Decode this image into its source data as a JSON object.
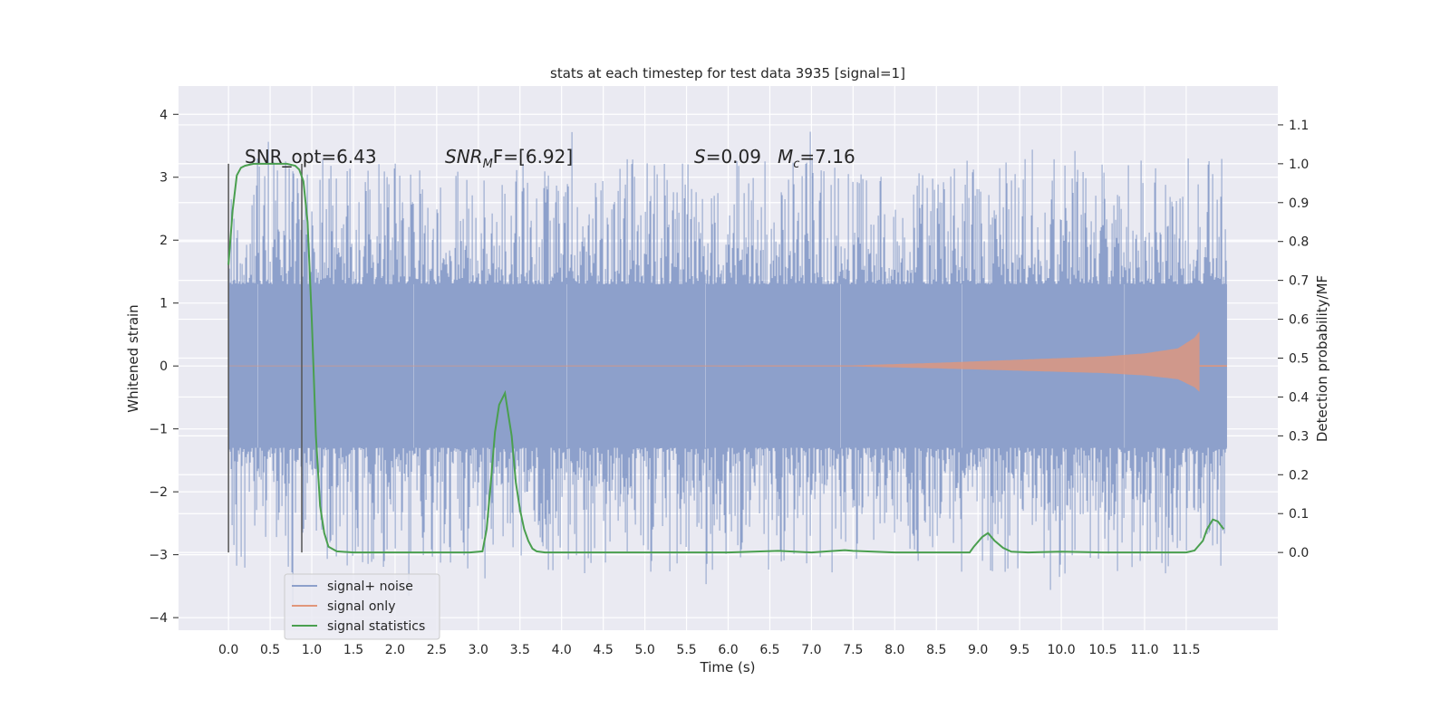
{
  "chart_data": {
    "type": "line",
    "title": "stats at each timestep for test data 3935 [signal=1]",
    "xlabel": "Time (s)",
    "ylabel_left": "Whitened strain",
    "ylabel_right": "Detection probability/MF",
    "xlim": [
      -0.6,
      12.6
    ],
    "ylim_left": [
      -4.2,
      4.45
    ],
    "ylim_right": [
      -0.2,
      1.2
    ],
    "x_ticks": [
      "0.0",
      "0.5",
      "1.0",
      "1.5",
      "2.0",
      "2.5",
      "3.0",
      "3.5",
      "4.0",
      "4.5",
      "5.0",
      "5.5",
      "6.0",
      "6.5",
      "7.0",
      "7.5",
      "8.0",
      "8.5",
      "9.0",
      "9.5",
      "10.0",
      "10.5",
      "11.0",
      "11.5"
    ],
    "y_left_ticks": [
      "-4",
      "-3",
      "-2",
      "-1",
      "0",
      "1",
      "2",
      "3",
      "4"
    ],
    "y_right_ticks": [
      "0.0",
      "0.1",
      "0.2",
      "0.3",
      "0.4",
      "0.5",
      "0.6",
      "0.7",
      "0.8",
      "0.9",
      "1.0",
      "1.1"
    ],
    "grid": true,
    "legend_position": "bottom-left",
    "annotations": {
      "snr_opt": "SNR_opt=6.43",
      "snr_mf_main": "SNR",
      "snr_mf_sub": "M",
      "snr_mf_rest": "F=[6.92]",
      "s_var": "S",
      "s_val": "=0.09",
      "mc_var": "M",
      "mc_sub": "c",
      "mc_val": "=7.16"
    },
    "vertical_markers": [
      0.0,
      0.88
    ],
    "series": [
      {
        "name": "signal+ noise",
        "axis": "left",
        "color": "#8da0cb",
        "description": "whitened strain noise spanning roughly -3.8 to 4.1 with dense band between -1.3 and 1.3",
        "x_range": [
          0.0,
          11.99
        ],
        "band": [
          -1.3,
          1.3
        ]
      },
      {
        "name": "signal only",
        "axis": "left",
        "color": "#e1967a",
        "description": "chirp signal growing in amplitude until merger near 11.65 s",
        "envelope": {
          "x": [
            0.0,
            7.5,
            8.5,
            9.5,
            10.5,
            11.0,
            11.4,
            11.6,
            11.66
          ],
          "amp": [
            0.005,
            0.01,
            0.05,
            0.1,
            0.15,
            0.2,
            0.28,
            0.45,
            0.55
          ]
        }
      },
      {
        "name": "signal statistics",
        "axis": "right",
        "color": "#4a9f4f",
        "x": [
          0.0,
          0.05,
          0.1,
          0.15,
          0.2,
          0.3,
          0.4,
          0.5,
          0.6,
          0.7,
          0.8,
          0.85,
          0.9,
          0.95,
          1.0,
          1.05,
          1.1,
          1.15,
          1.2,
          1.3,
          1.5,
          2.0,
          2.5,
          2.9,
          3.05,
          3.1,
          3.15,
          3.2,
          3.25,
          3.32,
          3.4,
          3.45,
          3.5,
          3.55,
          3.6,
          3.65,
          3.7,
          3.8,
          4.0,
          4.5,
          5.0,
          6.0,
          6.6,
          7.0,
          7.4,
          7.5,
          8.0,
          8.5,
          8.9,
          8.95,
          9.05,
          9.12,
          9.2,
          9.3,
          9.4,
          9.6,
          10.0,
          10.5,
          11.0,
          11.5,
          11.6,
          11.7,
          11.75,
          11.82,
          11.88,
          11.95
        ],
        "values": [
          0.74,
          0.88,
          0.97,
          0.99,
          0.995,
          1.0,
          1.0,
          1.0,
          1.0,
          1.0,
          0.995,
          0.985,
          0.955,
          0.85,
          0.6,
          0.3,
          0.12,
          0.05,
          0.015,
          0.003,
          0.0,
          0.0,
          0.0,
          0.0,
          0.003,
          0.06,
          0.18,
          0.31,
          0.38,
          0.41,
          0.3,
          0.18,
          0.11,
          0.06,
          0.03,
          0.01,
          0.003,
          0.0,
          0.0,
          0.0,
          0.0,
          0.0,
          0.004,
          0.0,
          0.006,
          0.004,
          0.0,
          0.0,
          0.0,
          0.015,
          0.04,
          0.05,
          0.03,
          0.012,
          0.002,
          0.0,
          0.002,
          0.0,
          0.0,
          0.0,
          0.005,
          0.03,
          0.06,
          0.085,
          0.08,
          0.06
        ]
      }
    ]
  }
}
